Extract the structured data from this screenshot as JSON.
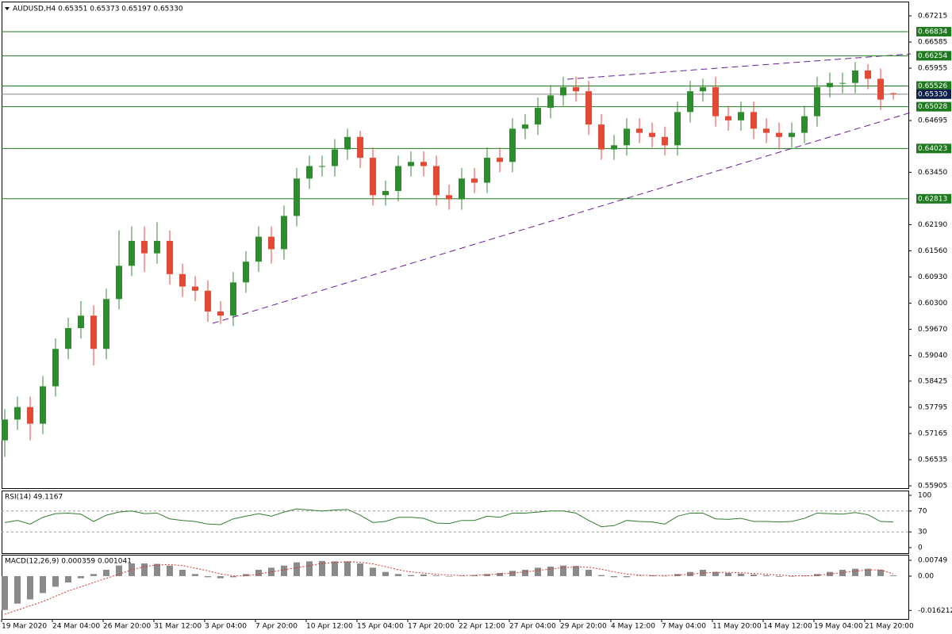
{
  "chart_data": [
    {
      "type": "candlestick",
      "title": "AUDUSD,H4  0.65351 0.65373 0.65197 0.65330",
      "categories": [
        "19 Mar 2020",
        null,
        null,
        null,
        "24 Mar 04:00",
        null,
        null,
        null,
        "26 Mar 20:00",
        null,
        null,
        null,
        "31 Mar 12:00",
        null,
        null,
        null,
        "3 Apr 04:00",
        null,
        null,
        null,
        "7 Apr 20:00",
        null,
        null,
        null,
        "10 Apr 12:00",
        null,
        null,
        null,
        "15 Apr 04:00",
        null,
        null,
        null,
        "17 Apr 20:00",
        null,
        null,
        null,
        "22 Apr 12:00",
        null,
        null,
        null,
        "27 Apr 04:00",
        null,
        null,
        null,
        "29 Apr 20:00",
        null,
        null,
        null,
        "4 May 12:00",
        null,
        null,
        null,
        "7 May 04:00",
        null,
        null,
        null,
        "11 May 20:00",
        null,
        null,
        null,
        "14 May 12:00",
        null,
        null,
        null,
        "19 May 04:00",
        null,
        null,
        null,
        "21 May 20:00",
        null,
        null
      ],
      "open": [
        0.57,
        0.575,
        0.578,
        0.574,
        0.583,
        0.592,
        0.597,
        0.6,
        0.592,
        0.604,
        0.612,
        0.618,
        0.615,
        0.618,
        0.61,
        0.607,
        0.606,
        0.601,
        0.6,
        0.608,
        0.613,
        0.619,
        0.616,
        0.624,
        0.633,
        0.636,
        0.636,
        0.64,
        0.643,
        0.638,
        0.629,
        0.63,
        0.636,
        0.637,
        0.636,
        0.629,
        0.628,
        0.633,
        0.632,
        0.638,
        0.637,
        0.645,
        0.646,
        0.65,
        0.653,
        0.655,
        0.654,
        0.646,
        0.64,
        0.641,
        0.645,
        0.644,
        0.643,
        0.641,
        0.649,
        0.654,
        0.655,
        0.648,
        0.647,
        0.649,
        0.645,
        0.644,
        0.643,
        0.644,
        0.648,
        0.655,
        0.656,
        0.656,
        0.659,
        0.657,
        0.65351
      ],
      "high": [
        0.5775,
        0.5805,
        0.5805,
        0.5855,
        0.5945,
        0.5995,
        0.6035,
        0.6025,
        0.6065,
        0.6205,
        0.6215,
        0.6215,
        0.6225,
        0.6205,
        0.6125,
        0.6095,
        0.6085,
        0.6035,
        0.6105,
        0.6155,
        0.6215,
        0.6215,
        0.6265,
        0.6355,
        0.6385,
        0.6385,
        0.6425,
        0.645,
        0.6445,
        0.6405,
        0.6325,
        0.6385,
        0.6395,
        0.6395,
        0.6385,
        0.6315,
        0.6355,
        0.6355,
        0.6405,
        0.6405,
        0.6475,
        0.6485,
        0.6525,
        0.6555,
        0.6575,
        0.6575,
        0.6565,
        0.6485,
        0.6435,
        0.6475,
        0.6475,
        0.6465,
        0.6455,
        0.6515,
        0.6565,
        0.657,
        0.6575,
        0.6505,
        0.6515,
        0.6515,
        0.6475,
        0.6465,
        0.6465,
        0.6505,
        0.6575,
        0.6585,
        0.6585,
        0.661,
        0.6605,
        0.6595,
        0.65373
      ],
      "low": [
        0.566,
        0.5725,
        0.57,
        0.5715,
        0.5805,
        0.5895,
        0.5945,
        0.588,
        0.5895,
        0.6015,
        0.6095,
        0.6105,
        0.6125,
        0.6075,
        0.6045,
        0.6035,
        0.5985,
        0.598,
        0.5975,
        0.6055,
        0.6105,
        0.6125,
        0.6135,
        0.6215,
        0.6305,
        0.6335,
        0.6335,
        0.6375,
        0.6355,
        0.6265,
        0.6265,
        0.6275,
        0.6335,
        0.6335,
        0.6265,
        0.6255,
        0.6255,
        0.6295,
        0.6295,
        0.6345,
        0.6345,
        0.6425,
        0.6435,
        0.6475,
        0.6505,
        0.6515,
        0.6435,
        0.6375,
        0.6375,
        0.6385,
        0.6415,
        0.6405,
        0.6385,
        0.6385,
        0.6465,
        0.6515,
        0.6455,
        0.6445,
        0.6445,
        0.6425,
        0.6415,
        0.64,
        0.6405,
        0.6415,
        0.6455,
        0.6525,
        0.6535,
        0.6535,
        0.6545,
        0.6495,
        0.65197
      ],
      "close": [
        0.575,
        0.578,
        0.574,
        0.583,
        0.592,
        0.597,
        0.6,
        0.592,
        0.604,
        0.612,
        0.618,
        0.615,
        0.618,
        0.61,
        0.607,
        0.606,
        0.601,
        0.6,
        0.608,
        0.613,
        0.619,
        0.616,
        0.624,
        0.633,
        0.636,
        0.636,
        0.64,
        0.643,
        0.638,
        0.629,
        0.63,
        0.636,
        0.637,
        0.636,
        0.629,
        0.628,
        0.633,
        0.632,
        0.638,
        0.637,
        0.645,
        0.646,
        0.65,
        0.653,
        0.655,
        0.654,
        0.646,
        0.64,
        0.641,
        0.645,
        0.644,
        0.643,
        0.641,
        0.649,
        0.654,
        0.655,
        0.648,
        0.647,
        0.649,
        0.645,
        0.644,
        0.643,
        0.644,
        0.648,
        0.655,
        0.656,
        0.656,
        0.659,
        0.657,
        0.652,
        0.6533
      ],
      "up_color": "#2e8b2e",
      "down_color": "#e34a33",
      "ylim": [
        0.55829,
        0.67558
      ],
      "yticks": [
        0.67215,
        0.66585,
        0.65955,
        0.64695,
        {
          "value": 0.6345,
          "label": "0.63450"
        },
        {
          "value": 0.6219,
          "label": "0.62190"
        },
        {
          "value": 0.6156,
          "label": "0.61560"
        },
        {
          "value": 0.6093,
          "label": "0.60930"
        },
        {
          "value": 0.603,
          "label": "0.60300"
        },
        {
          "value": 0.5967,
          "label": "0.59670"
        },
        {
          "value": 0.5904,
          "label": "0.59040"
        },
        0.58425,
        0.57795,
        0.57165,
        0.56535,
        0.55905
      ],
      "levels": [
        0.66834,
        0.66254,
        0.65526,
        0.65028,
        0.64023,
        0.62813
      ],
      "level_color": "#1f7a1f",
      "current_price": {
        "value": 0.6533,
        "label": "0.65330"
      },
      "current_color": "#0b1f4a"
    },
    {
      "type": "line",
      "title": "RSI(14) 49.1167",
      "values": [
        48,
        52,
        45,
        58,
        65,
        66,
        64,
        50,
        62,
        68,
        70,
        65,
        66,
        55,
        52,
        50,
        45,
        44,
        55,
        60,
        65,
        60,
        68,
        74,
        72,
        70,
        72,
        73,
        62,
        48,
        50,
        58,
        58,
        56,
        47,
        46,
        52,
        52,
        60,
        58,
        66,
        66,
        68,
        70,
        70,
        66,
        52,
        40,
        42,
        52,
        50,
        49,
        45,
        60,
        66,
        66,
        55,
        54,
        56,
        50,
        50,
        49,
        50,
        56,
        66,
        65,
        64,
        67,
        63,
        50,
        49.1167
      ],
      "color": "#2e7d2e",
      "ylim": [
        -10.6,
        107.6
      ],
      "yticks": [
        100,
        70,
        30,
        0
      ],
      "grid": true
    },
    {
      "type": "macd",
      "title": "MACD(12,26,9) 0.000359 0.001041",
      "histogram": [
        -0.016,
        -0.013,
        -0.011,
        -0.008,
        -0.005,
        -0.003,
        -0.001,
        0.001,
        0.003,
        0.005,
        0.006,
        0.006,
        0.0058,
        0.005,
        0.003,
        0.001,
        -0.0005,
        -0.001,
        -0.0005,
        0.001,
        0.003,
        0.004,
        0.005,
        0.0065,
        0.007,
        0.0072,
        0.007,
        0.007,
        0.006,
        0.004,
        0.002,
        0.001,
        0.0005,
        0.0008,
        0.0003,
        -0.0002,
        0.0002,
        0.0005,
        0.001,
        0.0015,
        0.0025,
        0.003,
        0.004,
        0.0045,
        0.005,
        0.0048,
        0.003,
        0.0005,
        -0.0005,
        -0.0005,
        0.0002,
        0.0004,
        0.0001,
        0.001,
        0.002,
        0.003,
        0.002,
        0.0015,
        0.0012,
        0.0008,
        0.0004,
        -0.0003,
        -0.0002,
        0.0003,
        0.001,
        0.002,
        0.003,
        0.0035,
        0.0035,
        0.003,
        0.000359
      ],
      "signal": [
        -0.018,
        -0.016,
        -0.014,
        -0.012,
        -0.0095,
        -0.007,
        -0.005,
        -0.003,
        -0.001,
        0.001,
        0.003,
        0.0045,
        0.0053,
        0.0055,
        0.005,
        0.0038,
        0.0025,
        0.001,
        0.0002,
        0.0001,
        0.001,
        0.002,
        0.003,
        0.004,
        0.005,
        0.006,
        0.0065,
        0.0068,
        0.0066,
        0.0058,
        0.0045,
        0.003,
        0.002,
        0.0014,
        0.0009,
        0.0005,
        0.0003,
        0.0004,
        0.0007,
        0.001,
        0.0015,
        0.002,
        0.0027,
        0.0034,
        0.004,
        0.0044,
        0.0042,
        0.0033,
        0.002,
        0.001,
        0.0005,
        0.0003,
        0.0003,
        0.0005,
        0.0009,
        0.0015,
        0.0018,
        0.0018,
        0.0016,
        0.0013,
        0.0009,
        0.0005,
        0.0002,
        0.0001,
        0.0004,
        0.001,
        0.0017,
        0.0024,
        0.0029,
        0.003,
        0.001041
      ],
      "histogram_color": "#8a8a8a",
      "signal_color": "#d9342b",
      "ylim": [
        -0.02022,
        0.00974
      ],
      "yticks": [
        0.00749,
        {
          "value": 0,
          "label": "0.00"
        },
        -0.016212
      ]
    }
  ]
}
